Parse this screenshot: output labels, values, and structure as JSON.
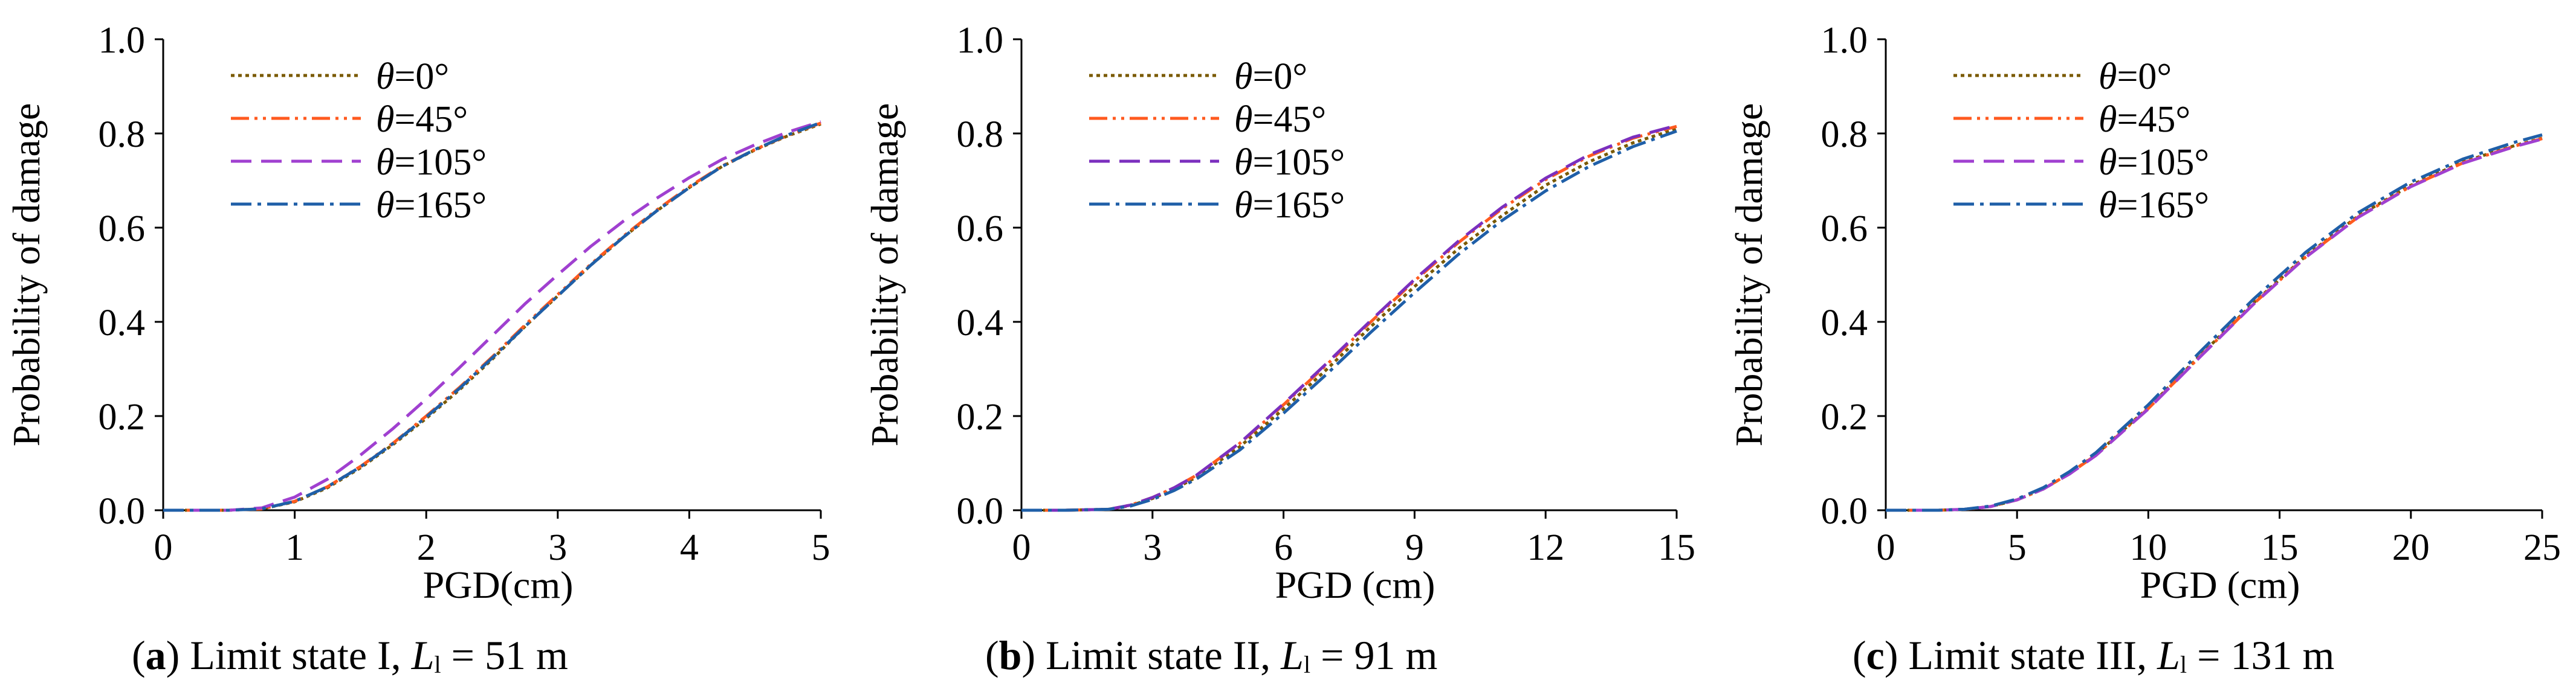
{
  "figure": {
    "panels": [
      {
        "letter": "a",
        "pre": "Limit state I, ",
        "L": "L",
        "sub": "l",
        "post": " = 51 m"
      },
      {
        "letter": "b",
        "pre": "Limit state II, ",
        "L": "L",
        "sub": "l",
        "post": " = 91 m"
      },
      {
        "letter": "c",
        "pre": "Limit state III, ",
        "L": "L",
        "sub": "l",
        "post": " = 131 m"
      }
    ]
  },
  "chart_data": [
    {
      "type": "line",
      "title": "(a) Limit state I, Ll = 51 m",
      "xlabel": "PGD(cm)",
      "ylabel": "Probability of damage",
      "xlim": [
        0,
        5
      ],
      "ylim": [
        0,
        1.0
      ],
      "xticks": [
        "0",
        "1",
        "2",
        "3",
        "4",
        "5"
      ],
      "yticks": [
        "0.0",
        "0.2",
        "0.4",
        "0.6",
        "0.8",
        "1.0"
      ],
      "legend_position": "top-left",
      "x": [
        0,
        0.5,
        0.75,
        1.0,
        1.25,
        1.5,
        1.75,
        2.0,
        2.25,
        2.5,
        2.75,
        3.0,
        3.25,
        3.5,
        3.75,
        4.0,
        4.25,
        4.5,
        4.75,
        5.0
      ],
      "series": [
        {
          "name": "θ=0°",
          "color": "#7a5a00",
          "dash": "dotted",
          "values": [
            0,
            0,
            0.003,
            0.018,
            0.048,
            0.09,
            0.14,
            0.195,
            0.255,
            0.32,
            0.39,
            0.455,
            0.52,
            0.58,
            0.635,
            0.685,
            0.73,
            0.765,
            0.795,
            0.82
          ]
        },
        {
          "name": "θ=45°",
          "color": "#ff5a1f",
          "dash": "dashdotdot",
          "values": [
            0,
            0,
            0.003,
            0.019,
            0.05,
            0.093,
            0.143,
            0.2,
            0.26,
            0.325,
            0.393,
            0.458,
            0.522,
            0.582,
            0.637,
            0.687,
            0.731,
            0.766,
            0.796,
            0.822
          ]
        },
        {
          "name": "θ=105°",
          "color": "#a040d0",
          "dash": "dashed",
          "values": [
            0,
            0,
            0.005,
            0.028,
            0.066,
            0.117,
            0.174,
            0.236,
            0.302,
            0.37,
            0.438,
            0.5,
            0.56,
            0.614,
            0.662,
            0.706,
            0.745,
            0.776,
            0.803,
            0.825
          ]
        },
        {
          "name": "θ=165°",
          "color": "#1f5fa8",
          "dash": "dashdot",
          "values": [
            0,
            0,
            0.003,
            0.019,
            0.05,
            0.092,
            0.142,
            0.198,
            0.258,
            0.323,
            0.39,
            0.455,
            0.52,
            0.58,
            0.635,
            0.685,
            0.73,
            0.766,
            0.797,
            0.823
          ]
        }
      ]
    },
    {
      "type": "line",
      "title": "(b) Limit state II, Ll = 91 m",
      "xlabel": "PGD (cm)",
      "ylabel": "Probability of damage",
      "xlim": [
        0,
        15
      ],
      "ylim": [
        0,
        1.0
      ],
      "xticks": [
        "0",
        "3",
        "6",
        "9",
        "12",
        "15"
      ],
      "yticks": [
        "0.0",
        "0.2",
        "0.4",
        "0.6",
        "0.8",
        "1.0"
      ],
      "legend_position": "top-left",
      "x": [
        0,
        1,
        2,
        2.5,
        3,
        3.5,
        4,
        5,
        6,
        7,
        8,
        9,
        10,
        11,
        12,
        13,
        14,
        15
      ],
      "series": [
        {
          "name": "θ=0°",
          "color": "#7a5a00",
          "dash": "dotted",
          "values": [
            0,
            0,
            0.002,
            0.01,
            0.025,
            0.045,
            0.07,
            0.135,
            0.215,
            0.3,
            0.39,
            0.475,
            0.555,
            0.625,
            0.69,
            0.74,
            0.78,
            0.81
          ]
        },
        {
          "name": "θ=45°",
          "color": "#ff5a1f",
          "dash": "dashdotdot",
          "values": [
            0,
            0,
            0.002,
            0.011,
            0.027,
            0.048,
            0.074,
            0.142,
            0.224,
            0.31,
            0.4,
            0.487,
            0.568,
            0.64,
            0.702,
            0.752,
            0.79,
            0.815
          ]
        },
        {
          "name": "θ=105°",
          "color": "#7b2fbe",
          "dash": "dashed",
          "values": [
            0,
            0,
            0.002,
            0.011,
            0.027,
            0.048,
            0.074,
            0.143,
            0.226,
            0.313,
            0.403,
            0.49,
            0.571,
            0.643,
            0.705,
            0.755,
            0.792,
            0.817
          ]
        },
        {
          "name": "θ=165°",
          "color": "#1f5fa8",
          "dash": "dashdot",
          "values": [
            0,
            0,
            0.002,
            0.009,
            0.023,
            0.042,
            0.066,
            0.128,
            0.206,
            0.29,
            0.378,
            0.462,
            0.543,
            0.615,
            0.678,
            0.73,
            0.772,
            0.805
          ]
        }
      ]
    },
    {
      "type": "line",
      "title": "(c) Limit state III, Ll = 131 m",
      "xlabel": "PGD (cm)",
      "ylabel": "Probability of damage",
      "xlim": [
        0,
        25
      ],
      "ylim": [
        0,
        1.0
      ],
      "xticks": [
        "0",
        "5",
        "10",
        "15",
        "20",
        "25"
      ],
      "yticks": [
        "0.0",
        "0.2",
        "0.4",
        "0.6",
        "0.8",
        "1.0"
      ],
      "legend_position": "top-left",
      "x": [
        0,
        2,
        3,
        4,
        5,
        6,
        7,
        8,
        10,
        12,
        14,
        16,
        18,
        20,
        22,
        24,
        25
      ],
      "series": [
        {
          "name": "θ=0°",
          "color": "#7a5a00",
          "dash": "dotted",
          "values": [
            0,
            0,
            0.002,
            0.008,
            0.022,
            0.045,
            0.078,
            0.118,
            0.218,
            0.33,
            0.44,
            0.54,
            0.625,
            0.69,
            0.74,
            0.775,
            0.79
          ]
        },
        {
          "name": "θ=45°",
          "color": "#ff5a1f",
          "dash": "dashdotdot",
          "values": [
            0,
            0,
            0.002,
            0.008,
            0.022,
            0.045,
            0.078,
            0.117,
            0.216,
            0.328,
            0.438,
            0.538,
            0.623,
            0.688,
            0.738,
            0.774,
            0.789
          ]
        },
        {
          "name": "θ=105°",
          "color": "#a040d0",
          "dash": "dashed",
          "values": [
            0,
            0,
            0.002,
            0.008,
            0.022,
            0.045,
            0.077,
            0.116,
            0.215,
            0.327,
            0.437,
            0.537,
            0.622,
            0.687,
            0.737,
            0.773,
            0.788
          ]
        },
        {
          "name": "θ=165°",
          "color": "#1f5fa8",
          "dash": "dashdot",
          "values": [
            0,
            0,
            0.002,
            0.009,
            0.024,
            0.048,
            0.082,
            0.122,
            0.224,
            0.338,
            0.448,
            0.548,
            0.632,
            0.697,
            0.746,
            0.782,
            0.797
          ]
        }
      ]
    }
  ]
}
